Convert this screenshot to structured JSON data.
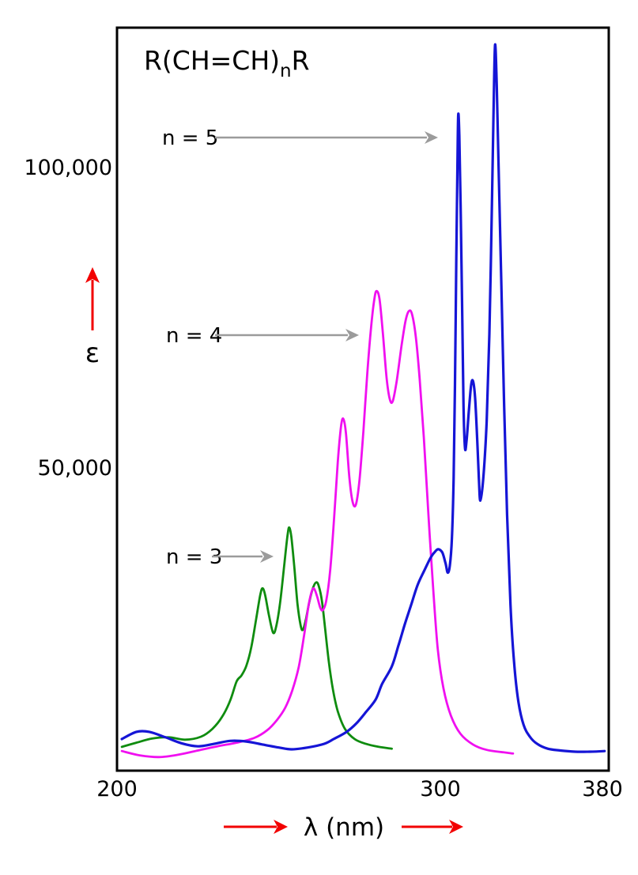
{
  "figure": {
    "formula": {
      "prefix": "R(CH=CH)",
      "sub": "n",
      "suffix": "R"
    },
    "y_axis": {
      "tick_labels": [
        "100,000",
        "50,000"
      ],
      "symbol": "ε"
    },
    "x_axis": {
      "tick_labels": [
        "200",
        "300",
        "380"
      ],
      "label": "λ (nm)"
    },
    "annotations": [
      {
        "label": "n = 5"
      },
      {
        "label": "n = 4"
      },
      {
        "label": "n = 3"
      }
    ],
    "colors": {
      "axis_arrow": "#f20000",
      "annotation_arrow": "#9b9b9b",
      "n3": "#0f8c0f",
      "n4": "#f010f0",
      "n5": "#1515d6"
    }
  },
  "chart_data": {
    "type": "line",
    "title": "UV absorption spectra of conjugated polyenes R(CH=CH)nR",
    "xlabel": "λ (nm)",
    "ylabel": "ε",
    "xlim": [
      200,
      380
    ],
    "ylim": [
      0,
      123000
    ],
    "x_ticks": [
      200,
      300,
      380
    ],
    "y_ticks": [
      50000,
      100000
    ],
    "grid": false,
    "legend_position": "in-plot arrows",
    "series": [
      {
        "key": "n3",
        "name": "n = 3",
        "color": "#0f8c0f",
        "lambda_max": [
          [
            245,
            29700
          ],
          [
            253.3,
            39800
          ],
          [
            261.7,
            30700
          ]
        ],
        "points": [
          [
            201.5,
            3300
          ],
          [
            206,
            4000
          ],
          [
            211,
            4700
          ],
          [
            216,
            4900
          ],
          [
            221,
            4500
          ],
          [
            226,
            5000
          ],
          [
            229.5,
            6300
          ],
          [
            232.5,
            8300
          ],
          [
            235,
            11000
          ],
          [
            237,
            14200
          ],
          [
            238.5,
            15200
          ],
          [
            240,
            16800
          ],
          [
            241.5,
            19800
          ],
          [
            243,
            24500
          ],
          [
            244.3,
            28600
          ],
          [
            245,
            29700
          ],
          [
            245.8,
            28600
          ],
          [
            247,
            25200
          ],
          [
            248.3,
            22300
          ],
          [
            249.3,
            23500
          ],
          [
            250.5,
            27500
          ],
          [
            251.8,
            34000
          ],
          [
            252.8,
            38800
          ],
          [
            253.3,
            39800
          ],
          [
            253.9,
            38300
          ],
          [
            254.8,
            33500
          ],
          [
            255.8,
            27200
          ],
          [
            256.8,
            23500
          ],
          [
            257.5,
            22800
          ],
          [
            258.4,
            24500
          ],
          [
            259.5,
            27500
          ],
          [
            260.7,
            29900
          ],
          [
            261.7,
            30700
          ],
          [
            262.5,
            29900
          ],
          [
            263.4,
            27500
          ],
          [
            264.4,
            22800
          ],
          [
            265.5,
            17500
          ],
          [
            266.8,
            12800
          ],
          [
            268.3,
            9200
          ],
          [
            270.5,
            6300
          ],
          [
            273.5,
            4600
          ],
          [
            277,
            3800
          ],
          [
            281,
            3300
          ],
          [
            285,
            3000
          ]
        ]
      },
      {
        "key": "n4",
        "name": "n = 4",
        "color": "#f010f0",
        "lambda_max": [
          [
            261,
            29600
          ],
          [
            270,
            57900
          ],
          [
            280.3,
            79200
          ],
          [
            290.2,
            75800
          ]
        ],
        "points": [
          [
            201.5,
            2600
          ],
          [
            207,
            1900
          ],
          [
            213,
            1600
          ],
          [
            219,
            2000
          ],
          [
            225,
            2700
          ],
          [
            231,
            3400
          ],
          [
            237,
            4000
          ],
          [
            242.5,
            4800
          ],
          [
            246.5,
            6100
          ],
          [
            249.5,
            7800
          ],
          [
            252,
            9800
          ],
          [
            254.2,
            12700
          ],
          [
            256.2,
            16600
          ],
          [
            257.9,
            22000
          ],
          [
            259.3,
            27000
          ],
          [
            260.3,
            29300
          ],
          [
            261,
            29600
          ],
          [
            261.9,
            28300
          ],
          [
            262.9,
            26400
          ],
          [
            263.7,
            26100
          ],
          [
            264.7,
            27600
          ],
          [
            265.9,
            32500
          ],
          [
            267.1,
            41000
          ],
          [
            268.3,
            50800
          ],
          [
            269.3,
            56700
          ],
          [
            270,
            57900
          ],
          [
            270.8,
            55500
          ],
          [
            271.9,
            47900
          ],
          [
            272.9,
            44000
          ],
          [
            273.9,
            43700
          ],
          [
            275,
            47800
          ],
          [
            276.2,
            55900
          ],
          [
            277.4,
            65500
          ],
          [
            278.6,
            73300
          ],
          [
            279.6,
            77900
          ],
          [
            280.3,
            79200
          ],
          [
            281.2,
            77800
          ],
          [
            282.2,
            72300
          ],
          [
            283.4,
            64600
          ],
          [
            284.4,
            61100
          ],
          [
            285.3,
            60900
          ],
          [
            286.5,
            64200
          ],
          [
            288,
            70100
          ],
          [
            289.2,
            74100
          ],
          [
            290.2,
            75800
          ],
          [
            291.2,
            75400
          ],
          [
            292.4,
            71600
          ],
          [
            293.6,
            64600
          ],
          [
            294.9,
            54800
          ],
          [
            296.3,
            42000
          ],
          [
            297.8,
            29500
          ],
          [
            299.2,
            19600
          ],
          [
            301.5,
            13000
          ],
          [
            305,
            8500
          ],
          [
            309.5,
            5500
          ],
          [
            315.5,
            3700
          ],
          [
            322,
            2800
          ],
          [
            330,
            2400
          ],
          [
            334.5,
            2200
          ]
        ]
      },
      {
        "key": "n5",
        "name": "n = 5",
        "color": "#1515d6",
        "lambda_max": [
          [
            299.5,
            36200
          ],
          [
            308.5,
            108500
          ],
          [
            315.5,
            64200
          ],
          [
            326,
            120200
          ]
        ],
        "points": [
          [
            201.5,
            4600
          ],
          [
            206,
            5800
          ],
          [
            210,
            5800
          ],
          [
            215,
            4900
          ],
          [
            220,
            3900
          ],
          [
            225,
            3400
          ],
          [
            230,
            3800
          ],
          [
            235,
            4300
          ],
          [
            240,
            4200
          ],
          [
            245,
            3700
          ],
          [
            250,
            3200
          ],
          [
            254,
            2900
          ],
          [
            259,
            3200
          ],
          [
            264,
            3800
          ],
          [
            267,
            4600
          ],
          [
            271,
            5800
          ],
          [
            274,
            7200
          ],
          [
            277,
            9100
          ],
          [
            280,
            11200
          ],
          [
            282,
            13800
          ],
          [
            285,
            16700
          ],
          [
            287,
            20100
          ],
          [
            289,
            23700
          ],
          [
            291,
            27000
          ],
          [
            293,
            30300
          ],
          [
            295,
            32600
          ],
          [
            297,
            34800
          ],
          [
            298.5,
            35900
          ],
          [
            299.5,
            36200
          ],
          [
            301,
            35600
          ],
          [
            302.5,
            33800
          ],
          [
            303.5,
            32300
          ],
          [
            304.5,
            33500
          ],
          [
            305.5,
            38000
          ],
          [
            306.3,
            48000
          ],
          [
            307,
            65000
          ],
          [
            307.6,
            85000
          ],
          [
            308.1,
            100000
          ],
          [
            308.5,
            108500
          ],
          [
            309,
            105000
          ],
          [
            309.7,
            92000
          ],
          [
            310.4,
            75000
          ],
          [
            311,
            60000
          ],
          [
            311.7,
            53000
          ],
          [
            312.5,
            54500
          ],
          [
            313.5,
            59000
          ],
          [
            314.6,
            63500
          ],
          [
            315.5,
            64200
          ],
          [
            316.5,
            61500
          ],
          [
            317.5,
            54500
          ],
          [
            318.3,
            48000
          ],
          [
            319,
            44300
          ],
          [
            320.5,
            48500
          ],
          [
            322,
            57500
          ],
          [
            323.3,
            72000
          ],
          [
            324.4,
            92000
          ],
          [
            325.3,
            110000
          ],
          [
            326,
            120200
          ],
          [
            326.8,
            113000
          ],
          [
            327.8,
            98000
          ],
          [
            329,
            80000
          ],
          [
            330.3,
            60000
          ],
          [
            331.7,
            42000
          ],
          [
            333.3,
            27000
          ],
          [
            335,
            17500
          ],
          [
            337,
            11000
          ],
          [
            339.5,
            7000
          ],
          [
            342.5,
            5000
          ],
          [
            346,
            3800
          ],
          [
            351,
            3000
          ],
          [
            357,
            2700
          ],
          [
            364,
            2500
          ],
          [
            371,
            2500
          ],
          [
            378,
            2600
          ]
        ]
      }
    ]
  }
}
